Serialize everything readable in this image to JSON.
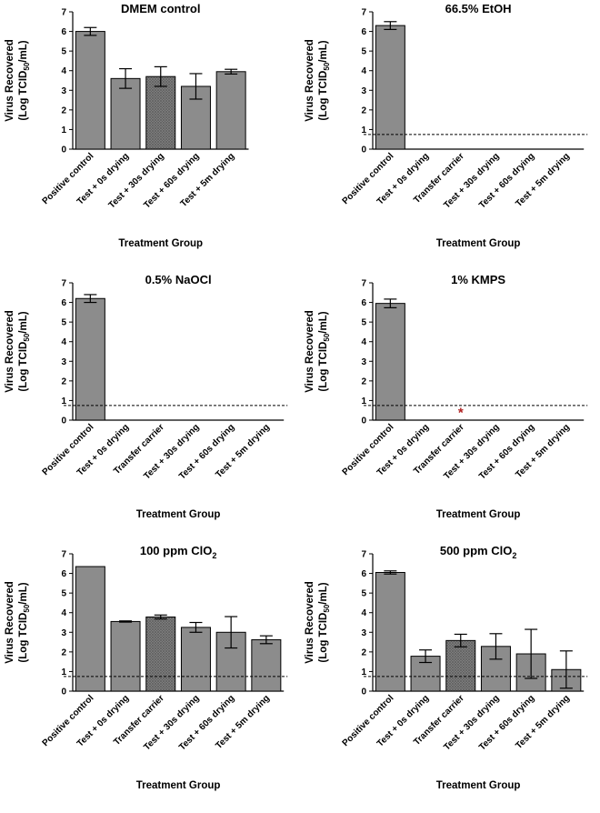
{
  "chart_data": [
    {
      "type": "bar",
      "title": "DMEM control",
      "title_subscript": "",
      "ylabel_line1": "Virus Recovered",
      "ylabel_line2_prefix": "(Log TCID",
      "ylabel_line2_sub": "50",
      "ylabel_line2_suffix": "/mL)",
      "xlabel": "Treatment Group",
      "ylim": [
        0,
        7
      ],
      "yticks": [
        "0",
        "1",
        "2",
        "3",
        "4",
        "5",
        "6",
        "7"
      ],
      "detection_limit": null,
      "categories": [
        "Positive control",
        "Test + 0s drying",
        "Test + 30s drying",
        "Test + 60s drying",
        "Test + 5m drying"
      ],
      "values": [
        6.0,
        3.6,
        3.7,
        3.2,
        3.95
      ],
      "errors": [
        0.2,
        0.5,
        0.5,
        0.65,
        0.12
      ],
      "hatched": [
        false,
        false,
        true,
        false,
        false
      ],
      "annotations": [],
      "colors": {
        "bar": "#8c8c8c",
        "hatch": "#5e5e5e"
      }
    },
    {
      "type": "bar",
      "title": "66.5%  EtOH",
      "title_subscript": "",
      "ylabel_line1": "Virus Recovered",
      "ylabel_line2_prefix": "(Log TCID",
      "ylabel_line2_sub": "50",
      "ylabel_line2_suffix": "/mL)",
      "xlabel": "Treatment Group",
      "ylim": [
        0,
        7
      ],
      "yticks": [
        "0",
        "1",
        "2",
        "3",
        "4",
        "5",
        "6",
        "7"
      ],
      "detection_limit": 0.75,
      "categories": [
        "Positive control",
        "Test + 0s drying",
        "Transfer carrier",
        "Test + 30s drying",
        "Test + 60s drying",
        "Test + 5m drying"
      ],
      "values": [
        6.3,
        0,
        0,
        0,
        0,
        0
      ],
      "errors": [
        0.2,
        0,
        0,
        0,
        0,
        0
      ],
      "hatched": [
        false,
        false,
        false,
        false,
        false,
        false
      ],
      "annotations": [],
      "colors": {
        "bar": "#8c8c8c",
        "hatch": "#5e5e5e"
      }
    },
    {
      "type": "bar",
      "title": "0.5% NaOCl",
      "title_subscript": "",
      "ylabel_line1": "Virus Recovered",
      "ylabel_line2_prefix": "(Log TCID",
      "ylabel_line2_sub": "50",
      "ylabel_line2_suffix": "/mL)",
      "xlabel": "Treatment Group",
      "ylim": [
        0,
        7
      ],
      "yticks": [
        "0",
        "1",
        "2",
        "3",
        "4",
        "5",
        "6",
        "7"
      ],
      "detection_limit": 0.75,
      "categories": [
        "Positive control",
        "Test + 0s drying",
        "Transfer carrier",
        "Test + 30s drying",
        "Test + 60s drying",
        "Test + 5m drying"
      ],
      "values": [
        6.2,
        0,
        0,
        0,
        0,
        0
      ],
      "errors": [
        0.2,
        0,
        0,
        0,
        0,
        0
      ],
      "hatched": [
        false,
        false,
        false,
        false,
        false,
        false
      ],
      "annotations": [],
      "colors": {
        "bar": "#8c8c8c",
        "hatch": "#5e5e5e"
      }
    },
    {
      "type": "bar",
      "title": "1%  KMPS",
      "title_subscript": "",
      "ylabel_line1": "Virus Recovered",
      "ylabel_line2_prefix": "(Log TCID",
      "ylabel_line2_sub": "50",
      "ylabel_line2_suffix": "/mL)",
      "xlabel": "Treatment Group",
      "ylim": [
        0,
        7
      ],
      "yticks": [
        "0",
        "1",
        "2",
        "3",
        "4",
        "5",
        "6",
        "7"
      ],
      "detection_limit": 0.75,
      "categories": [
        "Positive control",
        "Test + 0s drying",
        "Transfer carrier",
        "Test + 30s drying",
        "Test + 60s drying",
        "Test + 5m drying"
      ],
      "values": [
        5.95,
        0,
        0,
        0,
        0,
        0
      ],
      "errors": [
        0.22,
        0,
        0,
        0,
        0,
        0
      ],
      "hatched": [
        false,
        false,
        false,
        false,
        false,
        false
      ],
      "annotations": [
        {
          "category_index": 2,
          "y": 0.45,
          "text": "*",
          "color": "#b02020"
        }
      ],
      "colors": {
        "bar": "#8c8c8c",
        "hatch": "#5e5e5e"
      }
    },
    {
      "type": "bar",
      "title": "100 ppm ClO",
      "title_subscript": "2",
      "ylabel_line1": "Virus Recovered",
      "ylabel_line2_prefix": "(Log TCID",
      "ylabel_line2_sub": "50",
      "ylabel_line2_suffix": "/mL)",
      "xlabel": "Treatment Group",
      "ylim": [
        0,
        7
      ],
      "yticks": [
        "0",
        "1",
        "2",
        "3",
        "4",
        "5",
        "6",
        "7"
      ],
      "detection_limit": 0.75,
      "categories": [
        "Positive control",
        "Test + 0s drying",
        "Transfer carrier",
        "Test + 30s drying",
        "Test + 60s drying",
        "Test + 5m drying"
      ],
      "values": [
        6.35,
        3.55,
        3.78,
        3.25,
        3.0,
        2.62
      ],
      "errors": [
        0,
        0.03,
        0.1,
        0.25,
        0.8,
        0.2
      ],
      "hatched": [
        false,
        false,
        true,
        false,
        false,
        false
      ],
      "annotations": [],
      "colors": {
        "bar": "#8c8c8c",
        "hatch": "#5e5e5e"
      }
    },
    {
      "type": "bar",
      "title": "500 ppm ClO",
      "title_subscript": "2",
      "ylabel_line1": "Virus Recovered",
      "ylabel_line2_prefix": "(Log TCID",
      "ylabel_line2_sub": "50",
      "ylabel_line2_suffix": "/mL)",
      "xlabel": "Treatment Group",
      "ylim": [
        0,
        7
      ],
      "yticks": [
        "0",
        "1",
        "2",
        "3",
        "4",
        "5",
        "6",
        "7"
      ],
      "detection_limit": 0.75,
      "categories": [
        "Positive control",
        "Test + 0s drying",
        "Transfer carrier",
        "Test + 30s drying",
        "Test + 60s drying",
        "Test + 5m drying"
      ],
      "values": [
        6.05,
        1.78,
        2.58,
        2.28,
        1.9,
        1.1
      ],
      "errors": [
        0.08,
        0.32,
        0.32,
        0.65,
        1.25,
        0.95
      ],
      "hatched": [
        false,
        false,
        true,
        false,
        false,
        false
      ],
      "annotations": [],
      "colors": {
        "bar": "#8c8c8c",
        "hatch": "#5e5e5e"
      }
    }
  ]
}
